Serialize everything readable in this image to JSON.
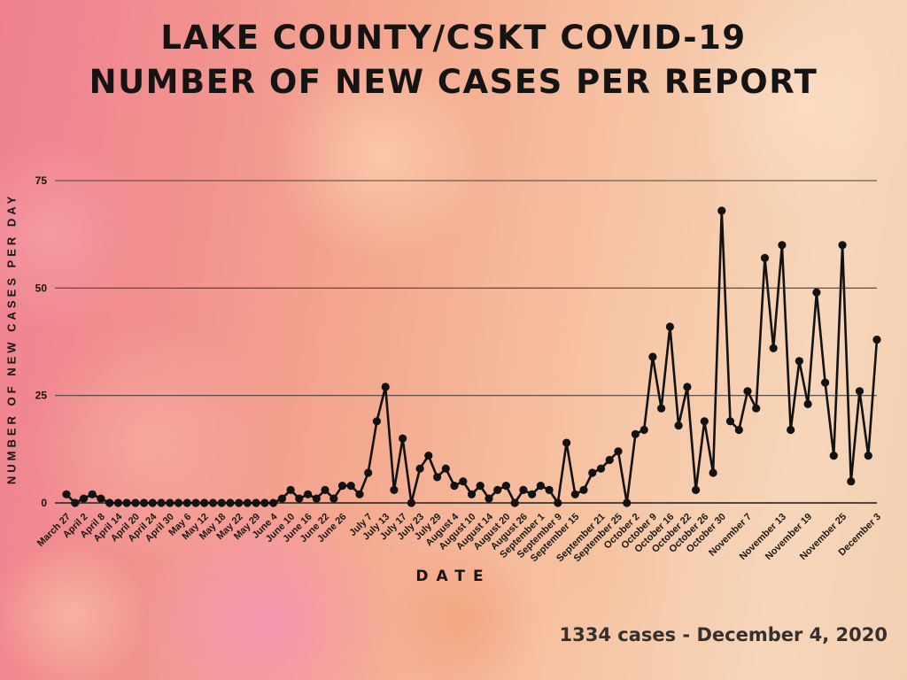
{
  "header": {
    "line1": "LAKE COUNTY/CSKT COVID-19",
    "line2": "NUMBER OF NEW CASES PER REPORT"
  },
  "footer": {
    "note": "1334 cases - December 4, 2020"
  },
  "palette": {
    "line": "#121212",
    "marker": "#121212",
    "grid": "#4a413c",
    "text": "#141414",
    "note_text": "#34302e",
    "bg_left_pink": "#ef8090",
    "bg_right_peach": "#f5d6ba"
  },
  "chart_data": {
    "type": "line",
    "title": "LAKE COUNTY/CSKT COVID-19 NUMBER OF NEW CASES PER REPORT",
    "xlabel": "DATE",
    "ylabel": "NUMBER OF NEW CASES PER DAY",
    "ylim": [
      0,
      75
    ],
    "y_ticks": [
      0,
      25,
      50,
      75
    ],
    "grid": true,
    "legend": "none",
    "marker": "circle",
    "points": [
      {
        "x": "March 27",
        "y": 2
      },
      {
        "x": "",
        "y": 0
      },
      {
        "x": "April 2",
        "y": 1
      },
      {
        "x": "",
        "y": 2
      },
      {
        "x": "April 8",
        "y": 1
      },
      {
        "x": "",
        "y": 0
      },
      {
        "x": "April 14",
        "y": 0
      },
      {
        "x": "",
        "y": 0
      },
      {
        "x": "April 20",
        "y": 0
      },
      {
        "x": "",
        "y": 0
      },
      {
        "x": "April 24",
        "y": 0
      },
      {
        "x": "",
        "y": 0
      },
      {
        "x": "April 30",
        "y": 0
      },
      {
        "x": "",
        "y": 0
      },
      {
        "x": "May 6",
        "y": 0
      },
      {
        "x": "",
        "y": 0
      },
      {
        "x": "May 12",
        "y": 0
      },
      {
        "x": "",
        "y": 0
      },
      {
        "x": "May 18",
        "y": 0
      },
      {
        "x": "",
        "y": 0
      },
      {
        "x": "May 22",
        "y": 0
      },
      {
        "x": "",
        "y": 0
      },
      {
        "x": "May 29",
        "y": 0
      },
      {
        "x": "",
        "y": 0
      },
      {
        "x": "June 4",
        "y": 0
      },
      {
        "x": "",
        "y": 1
      },
      {
        "x": "June 10",
        "y": 3
      },
      {
        "x": "",
        "y": 1
      },
      {
        "x": "June 16",
        "y": 2
      },
      {
        "x": "",
        "y": 1
      },
      {
        "x": "June 22",
        "y": 3
      },
      {
        "x": "",
        "y": 1
      },
      {
        "x": "June 26",
        "y": 4
      },
      {
        "x": "",
        "y": 4
      },
      {
        "x": "",
        "y": 2
      },
      {
        "x": "July 7",
        "y": 7
      },
      {
        "x": "",
        "y": 19
      },
      {
        "x": "July 13",
        "y": 27
      },
      {
        "x": "",
        "y": 3
      },
      {
        "x": "July 17",
        "y": 15
      },
      {
        "x": "",
        "y": 0
      },
      {
        "x": "July 23",
        "y": 8
      },
      {
        "x": "",
        "y": 11
      },
      {
        "x": "July 29",
        "y": 6
      },
      {
        "x": "",
        "y": 8
      },
      {
        "x": "August 4",
        "y": 4
      },
      {
        "x": "",
        "y": 5
      },
      {
        "x": "August 10",
        "y": 2
      },
      {
        "x": "",
        "y": 4
      },
      {
        "x": "August 14",
        "y": 1
      },
      {
        "x": "",
        "y": 3
      },
      {
        "x": "August 20",
        "y": 4
      },
      {
        "x": "",
        "y": 0
      },
      {
        "x": "August 26",
        "y": 3
      },
      {
        "x": "",
        "y": 2
      },
      {
        "x": "September 1",
        "y": 4
      },
      {
        "x": "",
        "y": 3
      },
      {
        "x": "September 9",
        "y": 0
      },
      {
        "x": "",
        "y": 14
      },
      {
        "x": "September 15",
        "y": 2
      },
      {
        "x": "",
        "y": 3
      },
      {
        "x": "",
        "y": 7
      },
      {
        "x": "September 21",
        "y": 8
      },
      {
        "x": "",
        "y": 10
      },
      {
        "x": "September 25",
        "y": 12
      },
      {
        "x": "",
        "y": 0
      },
      {
        "x": "October 2",
        "y": 16
      },
      {
        "x": "",
        "y": 17
      },
      {
        "x": "October 9",
        "y": 34
      },
      {
        "x": "",
        "y": 22
      },
      {
        "x": "October 16",
        "y": 41
      },
      {
        "x": "",
        "y": 18
      },
      {
        "x": "October 22",
        "y": 27
      },
      {
        "x": "",
        "y": 3
      },
      {
        "x": "October 26",
        "y": 19
      },
      {
        "x": "",
        "y": 7
      },
      {
        "x": "October 30",
        "y": 68
      },
      {
        "x": "",
        "y": 19
      },
      {
        "x": "",
        "y": 17
      },
      {
        "x": "November 7",
        "y": 26
      },
      {
        "x": "",
        "y": 22
      },
      {
        "x": "",
        "y": 57
      },
      {
        "x": "",
        "y": 36
      },
      {
        "x": "November 13",
        "y": 60
      },
      {
        "x": "",
        "y": 17
      },
      {
        "x": "",
        "y": 33
      },
      {
        "x": "November 19",
        "y": 23
      },
      {
        "x": "",
        "y": 49
      },
      {
        "x": "",
        "y": 28
      },
      {
        "x": "",
        "y": 11
      },
      {
        "x": "November 25",
        "y": 60
      },
      {
        "x": "",
        "y": 5
      },
      {
        "x": "",
        "y": 26
      },
      {
        "x": "",
        "y": 11
      },
      {
        "x": "December 3",
        "y": 38
      }
    ]
  }
}
